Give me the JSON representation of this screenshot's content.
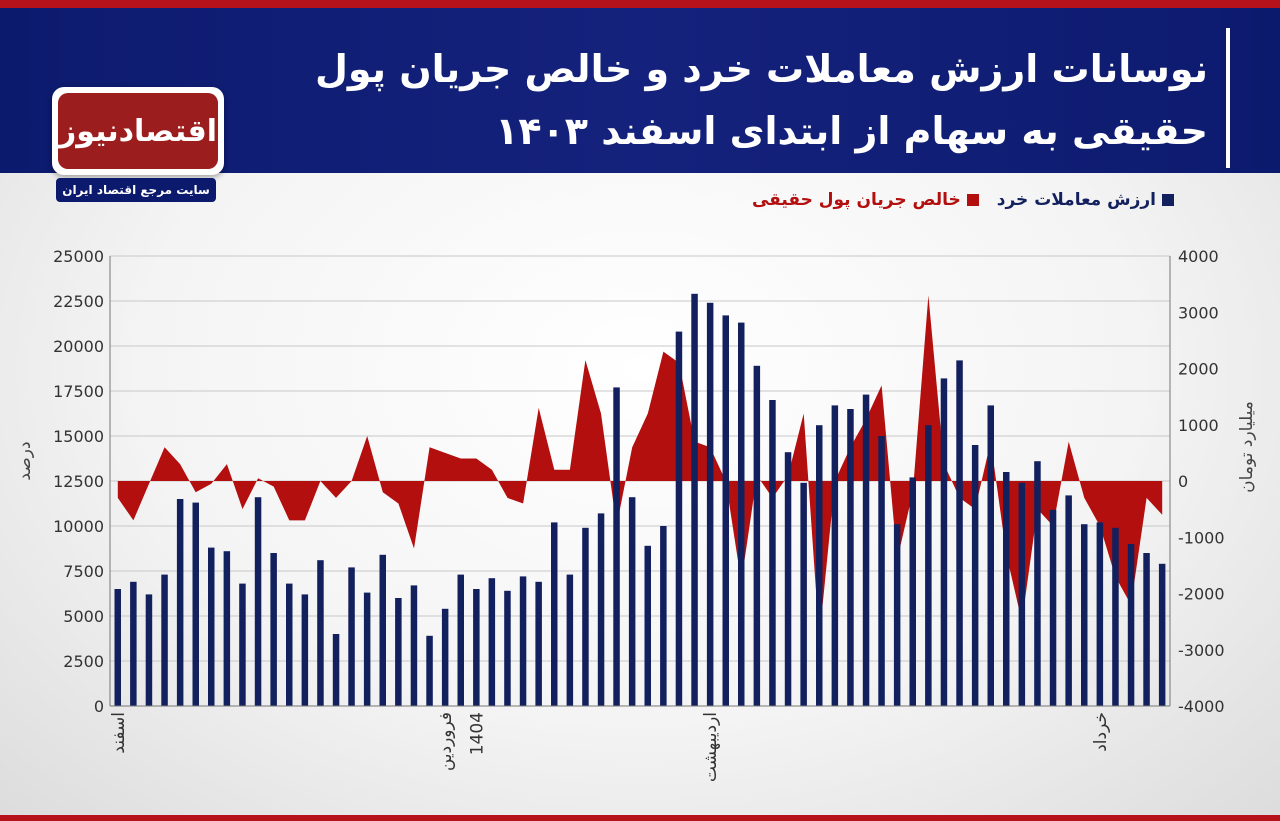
{
  "header": {
    "title_line1": "نوسانات ارزش معاملات خرد و خالص جریان پول",
    "title_line2": "حقیقی به سهام از ابتدای اسفند ۱۴۰۳"
  },
  "logo": {
    "name": "اقتصادنیوز",
    "tagline": "سایت مرجع اقتصاد ایران"
  },
  "colors": {
    "header_bg": "#0c1a6e",
    "accent_red": "#b5121b",
    "bar_color": "#13205e",
    "area_color": "#b30f0f"
  },
  "chart_data": {
    "type": "bar",
    "legend": [
      {
        "name": "ارزش معاملات خرد",
        "color": "#13205e"
      },
      {
        "name": "خالص جریان پول حقیقی",
        "color": "#b30f0f"
      }
    ],
    "ylabel_left": "درصد",
    "ylabel_right": "میلیارد تومان",
    "left_axis": {
      "min": 0,
      "max": 25000,
      "ticks": [
        {
          "v": 0,
          "label": "0"
        },
        {
          "v": 2500,
          "label": "2500"
        },
        {
          "v": 5000,
          "label": "5000"
        },
        {
          "v": 7500,
          "label": "7500"
        },
        {
          "v": 10000,
          "label": "10000"
        },
        {
          "v": 12500,
          "label": "12500"
        },
        {
          "v": 15000,
          "label": "15000"
        },
        {
          "v": 17500,
          "label": "17500"
        },
        {
          "v": 20000,
          "label": "20000"
        },
        {
          "v": 22500,
          "label": "22500"
        },
        {
          "v": 25000,
          "label": "25000"
        }
      ]
    },
    "right_axis": {
      "min": -4000,
      "max": 4000,
      "ticks": [
        {
          "v": 4000,
          "label": "4000"
        },
        {
          "v": 3000,
          "label": "3000"
        },
        {
          "v": 2000,
          "label": "2000"
        },
        {
          "v": 1000,
          "label": "1000"
        },
        {
          "v": 0,
          "label": "0"
        },
        {
          "v": -1000,
          "label": "-1000"
        },
        {
          "v": -2000,
          "label": "-2000"
        },
        {
          "v": -3000,
          "label": "-3000"
        },
        {
          "v": -4000,
          "label": "-4000"
        }
      ]
    },
    "x_labels": [
      {
        "index": 0,
        "label": "اسفند"
      },
      {
        "index": 21,
        "label": "فروردین"
      },
      {
        "index": 23,
        "label": "1404"
      },
      {
        "index": 38,
        "label": "اردیبهشت"
      },
      {
        "index": 63,
        "label": "خرداد"
      }
    ],
    "bars_retail_value": [
      6500,
      6900,
      6200,
      7300,
      11500,
      11300,
      8800,
      8600,
      6800,
      11600,
      8500,
      6800,
      6200,
      8100,
      4000,
      7700,
      6300,
      8400,
      6000,
      6700,
      3900,
      5400,
      7300,
      6500,
      7100,
      6400,
      7200,
      6900,
      10200,
      7300,
      9900,
      10700,
      17700,
      11600,
      8900,
      10000,
      20800,
      22900,
      22400,
      21700,
      21300,
      18900,
      17000,
      14100,
      12400,
      15600,
      16700,
      16500,
      17300,
      15000,
      10100,
      12700,
      15600,
      18200,
      19200,
      14500,
      16700,
      13000,
      12400,
      13600,
      10900,
      11700,
      10100,
      10200,
      9900,
      9000,
      8500,
      7900
    ],
    "area_net_real_money": [
      -300,
      -700,
      -50,
      600,
      300,
      -200,
      -50,
      300,
      -500,
      50,
      -100,
      -700,
      -700,
      0,
      -300,
      0,
      800,
      -200,
      -400,
      -1200,
      600,
      500,
      400,
      400,
      200,
      -300,
      -400,
      1300,
      200,
      200,
      2150,
      1200,
      -800,
      600,
      1200,
      2300,
      2100,
      700,
      600,
      0,
      -1800,
      100,
      -300,
      100,
      1200,
      -2800,
      0,
      600,
      1100,
      1700,
      -1400,
      -200,
      3300,
      300,
      -300,
      -500,
      700,
      -1300,
      -2500,
      -500,
      -800,
      700,
      -300,
      -800,
      -1700,
      -2200,
      -300,
      -600
    ]
  }
}
